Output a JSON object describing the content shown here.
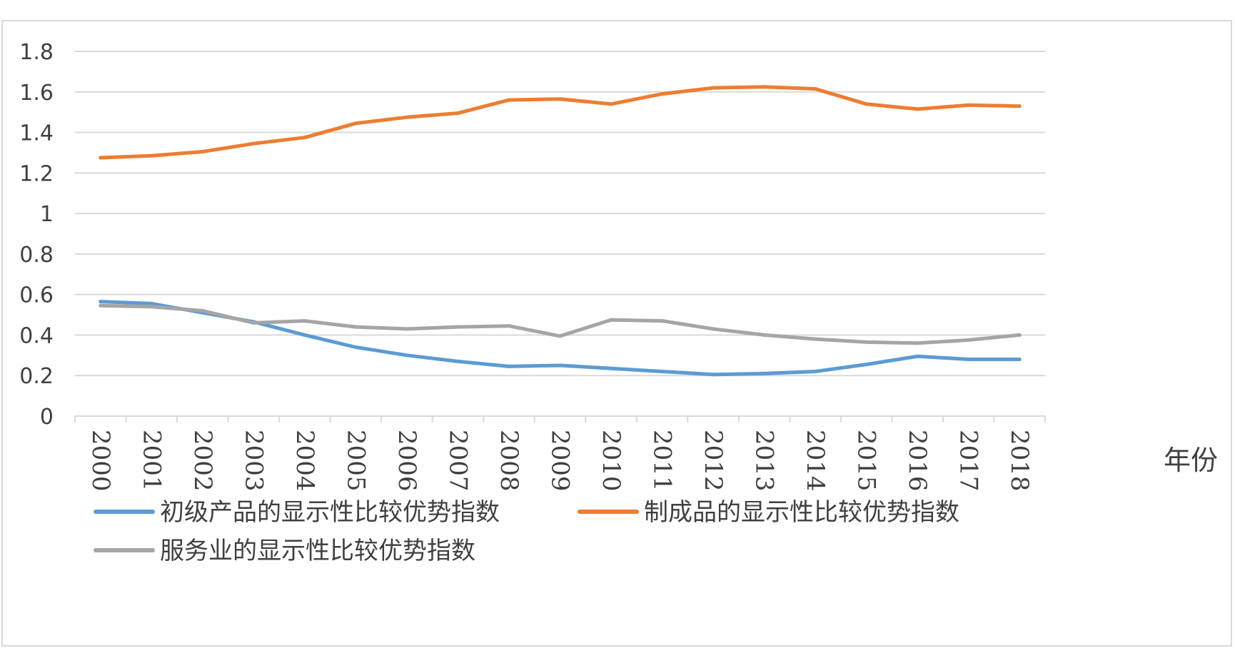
{
  "chart_data": {
    "type": "line",
    "xlabel": "年份",
    "ylabel": "",
    "ylim": [
      0,
      1.8
    ],
    "yticks": [
      "0",
      "0.2",
      "0.4",
      "0.6",
      "0.8",
      "1",
      "1.2",
      "1.4",
      "1.6",
      "1.8"
    ],
    "grid": true,
    "legend_position": "bottom",
    "categories": [
      "2000",
      "2001",
      "2002",
      "2003",
      "2004",
      "2005",
      "2006",
      "2007",
      "2008",
      "2009",
      "2010",
      "2011",
      "2012",
      "2013",
      "2014",
      "2015",
      "2016",
      "2017",
      "2018"
    ],
    "series": [
      {
        "name": "初级产品的显示性比较优势指数",
        "color": "#5b9bd5",
        "values": [
          0.565,
          0.555,
          0.51,
          0.465,
          0.4,
          0.34,
          0.3,
          0.27,
          0.245,
          0.25,
          0.235,
          0.22,
          0.205,
          0.21,
          0.22,
          0.255,
          0.295,
          0.28,
          0.28
        ]
      },
      {
        "name": "制成品的显示性比较优势指数",
        "color": "#ed7d31",
        "values": [
          1.275,
          1.285,
          1.305,
          1.345,
          1.375,
          1.445,
          1.475,
          1.495,
          1.56,
          1.565,
          1.54,
          1.59,
          1.62,
          1.625,
          1.615,
          1.54,
          1.515,
          1.535,
          1.53
        ]
      },
      {
        "name": "服务业的显示性比较优势指数",
        "color": "#a5a5a5",
        "values": [
          0.545,
          0.54,
          0.52,
          0.46,
          0.47,
          0.44,
          0.43,
          0.44,
          0.445,
          0.395,
          0.475,
          0.47,
          0.43,
          0.4,
          0.38,
          0.365,
          0.36,
          0.375,
          0.4
        ]
      }
    ]
  }
}
